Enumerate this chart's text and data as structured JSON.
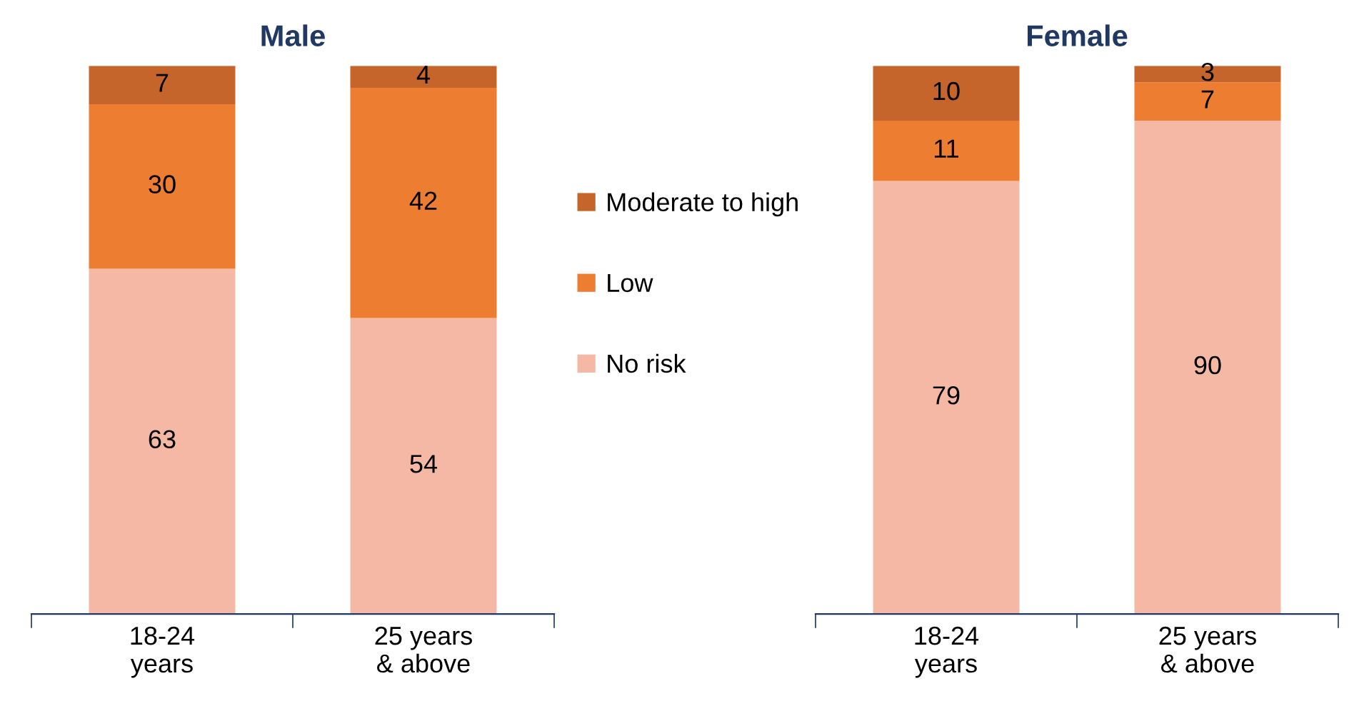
{
  "chart_data": [
    {
      "type": "bar",
      "title": "Male",
      "stacked": true,
      "categories": [
        "18-24\nyears",
        "25 years\n& above"
      ],
      "ylim": [
        0,
        100
      ],
      "tick_labels": "x",
      "data_labels": true,
      "legend": "right",
      "grid": false,
      "series": [
        {
          "name": "No risk",
          "color": "#f4b8a4",
          "values": [
            63,
            54
          ]
        },
        {
          "name": "Low",
          "color": "#ed7d31",
          "values": [
            30,
            42
          ]
        },
        {
          "name": "Moderate to high",
          "color": "#c5652b",
          "values": [
            7,
            4
          ]
        }
      ]
    },
    {
      "type": "bar",
      "title": "Female",
      "stacked": true,
      "categories": [
        "18-24\nyears",
        "25 years\n& above"
      ],
      "ylim": [
        0,
        100
      ],
      "tick_labels": "x",
      "data_labels": true,
      "grid": false,
      "series": [
        {
          "color": "#f4b8a4",
          "values": [
            79,
            90
          ]
        },
        {
          "color": "#ed7d31",
          "values": [
            11,
            7
          ]
        },
        {
          "color": "#c5652b",
          "values": [
            10,
            3
          ]
        }
      ]
    }
  ]
}
